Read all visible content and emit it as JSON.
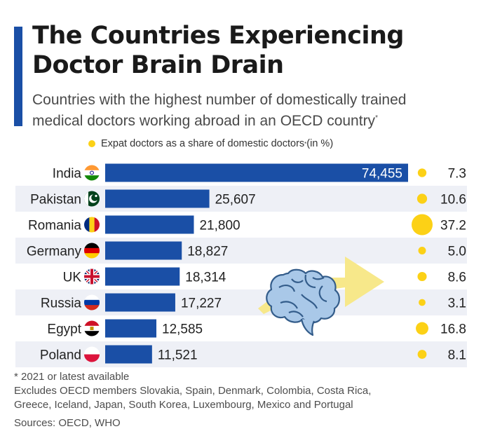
{
  "header": {
    "title_line1": "The Countries Experiencing",
    "title_line2": "Doctor Brain Drain",
    "subtitle_line1": "Countries with the highest number of domestically trained",
    "subtitle_line2": "medical doctors working abroad in an OECD country",
    "subtitle_mark": "*"
  },
  "legend": {
    "label": "Expat doctors as a share of domestic doctors",
    "mark": "*",
    "suffix": " (in %)"
  },
  "footer": {
    "note": "* 2021 or latest available",
    "excludes_line1": "Excludes OECD members Slovakia, Spain, Denmark, Colombia, Costa Rica,",
    "excludes_line2": "Greece, Iceland, Japan, South Korea, Luxembourg, Mexico and Portugal",
    "sources": "Sources: OECD, WHO"
  },
  "colors": {
    "bar": "#1a4fa6",
    "row_band": "#eef0f6",
    "dot": "#fcd116",
    "arrow": "#f7e88a",
    "brain": "#a9c8e8"
  },
  "icons": {
    "decoration": [
      "brain-icon",
      "arrow-icon"
    ],
    "flags": [
      "india-flag-icon",
      "pakistan-flag-icon",
      "romania-flag-icon",
      "germany-flag-icon",
      "uk-flag-icon",
      "russia-flag-icon",
      "egypt-flag-icon",
      "poland-flag-icon"
    ]
  },
  "chart_data": {
    "type": "bar",
    "orientation": "horizontal",
    "categories": [
      "India",
      "Pakistan",
      "Romania",
      "Germany",
      "UK",
      "Russia",
      "Egypt",
      "Poland"
    ],
    "series": [
      {
        "values": [
          74455,
          25607,
          21800,
          18827,
          18314,
          17227,
          12585,
          11521
        ],
        "labels": [
          "74,455",
          "25,607",
          "21,800",
          "18,827",
          "18,314",
          "17,227",
          "12,585",
          "11,521"
        ]
      },
      {
        "values": [
          7.3,
          10.6,
          37.2,
          5.0,
          8.6,
          3.1,
          16.8,
          8.1
        ],
        "labels": [
          "7.3",
          "10.6",
          "37.2",
          "5.0",
          "8.6",
          "3.1",
          "16.8",
          "8.1"
        ]
      }
    ]
  }
}
